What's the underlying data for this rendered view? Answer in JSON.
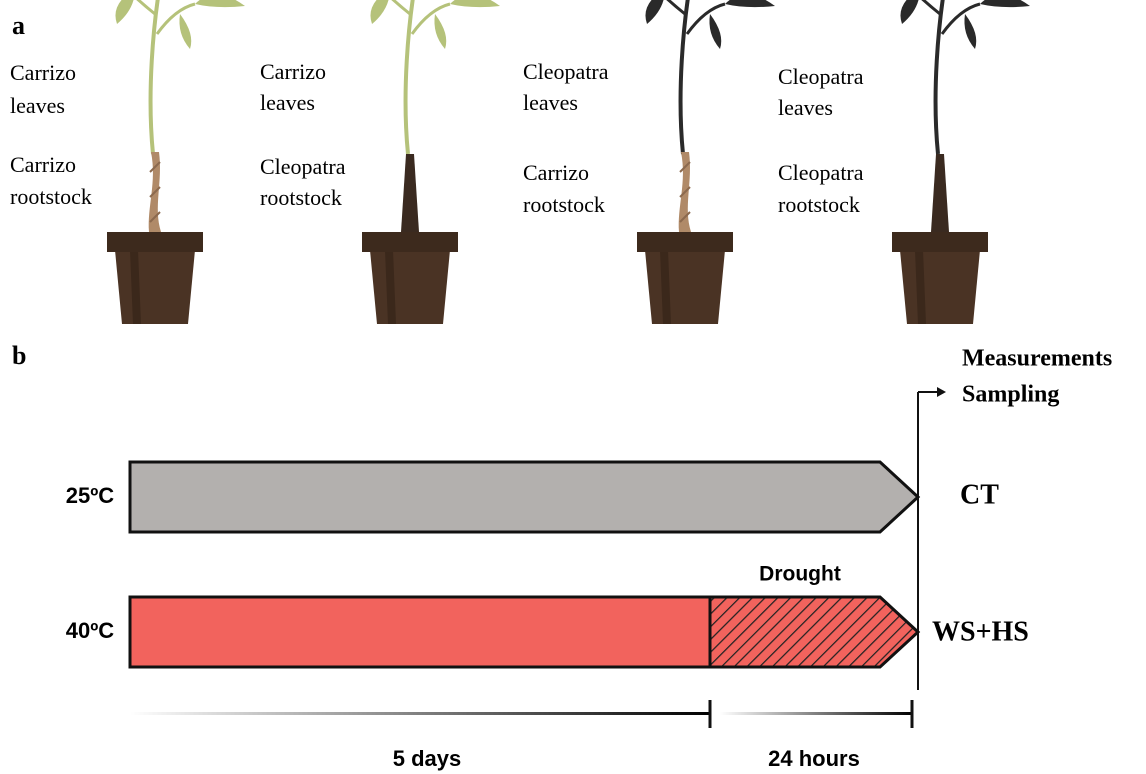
{
  "panel_a": {
    "label": "a",
    "plants": [
      {
        "leaves": [
          "Carrizo",
          "leaves"
        ],
        "rootstock": [
          "Carrizo",
          "rootstock"
        ]
      },
      {
        "leaves": [
          "Carrizo",
          "leaves"
        ],
        "rootstock": [
          "Cleopatra",
          "rootstock"
        ]
      },
      {
        "leaves": [
          "Cleopatra",
          "leaves"
        ],
        "rootstock": [
          "Carrizo",
          "rootstock"
        ]
      },
      {
        "leaves": [
          "Cleopatra",
          "leaves"
        ],
        "rootstock": [
          "Cleopatra",
          "rootstock"
        ]
      }
    ]
  },
  "panel_b": {
    "label": "b",
    "endpoint": [
      "Measurements",
      "Sampling"
    ],
    "rows": [
      {
        "temperature": "25ºC",
        "outcome": "CT"
      },
      {
        "temperature": "40ºC",
        "outcome": "WS+HS",
        "phase": "Drought"
      }
    ],
    "durations": [
      "5 days",
      "24 hours"
    ]
  }
}
